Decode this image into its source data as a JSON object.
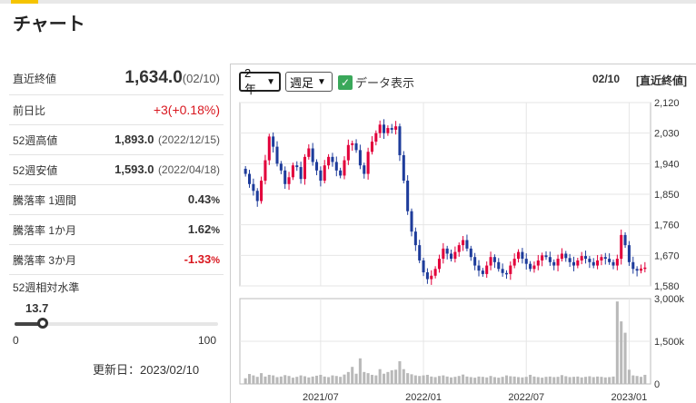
{
  "page": {
    "title": "チャート"
  },
  "stats": {
    "close": {
      "label": "直近終値",
      "value": "1,634.0",
      "date": "(02/10)"
    },
    "change": {
      "label": "前日比",
      "value": "+3(+0.18%)"
    },
    "high52": {
      "label": "52週高値",
      "value": "1,893.0",
      "date": "(2022/12/15)"
    },
    "low52": {
      "label": "52週安値",
      "value": "1,593.0",
      "date": "(2022/04/18)"
    },
    "drop1w": {
      "label": "騰落率 1週間",
      "value": "0.43",
      "unit": "%"
    },
    "drop1m": {
      "label": "騰落率 1か月",
      "value": "1.62",
      "unit": "%"
    },
    "drop3m": {
      "label": "騰落率 3か月",
      "value": "-1.33",
      "unit": "%"
    },
    "relative": {
      "label": "52週相対水準",
      "value": "13.7",
      "level": 13.7,
      "min": "0",
      "max": "100"
    },
    "updated": "更新日：2023/02/10"
  },
  "controls": {
    "period": "2年",
    "interval": "週足",
    "show_data": "データ表示",
    "date": "02/10",
    "price_type": "[直近終値]"
  },
  "chart_data": [
    {
      "type": "candlestick",
      "price_ticks": [
        "2,120",
        "2,030",
        "1,940",
        "1,850",
        "1,760",
        "1,670",
        "1,580"
      ],
      "ylim": [
        1580,
        2120
      ],
      "x_ticks": [
        "2021/07",
        "2022/01",
        "2022/07",
        "2023/01"
      ],
      "colors": {
        "up": "#e2003b",
        "down": "#1e3c9b"
      },
      "close": [
        1910,
        1880,
        1860,
        1830,
        1890,
        1950,
        2020,
        1990,
        1940,
        1920,
        1880,
        1900,
        1935,
        1930,
        1895,
        1960,
        1985,
        1945,
        1920,
        1890,
        1935,
        1960,
        1945,
        1920,
        1905,
        1950,
        1995,
        2000,
        1980,
        1935,
        1910,
        1975,
        2005,
        2030,
        2055,
        2030,
        2045,
        2040,
        2050,
        1965,
        1890,
        1800,
        1740,
        1700,
        1655,
        1620,
        1600,
        1610,
        1630,
        1660,
        1690,
        1675,
        1660,
        1680,
        1700,
        1715,
        1690,
        1665,
        1640,
        1625,
        1615,
        1640,
        1665,
        1650,
        1630,
        1618,
        1615,
        1640,
        1660,
        1680,
        1660,
        1645,
        1630,
        1640,
        1655,
        1670,
        1665,
        1650,
        1640,
        1660,
        1675,
        1662,
        1650,
        1640,
        1655,
        1668,
        1660,
        1650,
        1640,
        1655,
        1665,
        1660,
        1650,
        1640,
        1660,
        1730,
        1700,
        1650,
        1630,
        1625,
        1631,
        1634
      ],
      "volume_ticks": [
        "3,000k",
        "1,500k",
        "0"
      ],
      "volume_max": 3000,
      "volume": [
        200,
        350,
        300,
        250,
        380,
        260,
        320,
        300,
        240,
        260,
        310,
        280,
        220,
        250,
        300,
        270,
        230,
        260,
        290,
        320,
        260,
        240,
        300,
        280,
        250,
        330,
        420,
        600,
        360,
        900,
        420,
        380,
        320,
        300,
        520,
        360,
        420,
        480,
        500,
        800,
        520,
        380,
        340,
        300,
        280,
        300,
        320,
        260,
        240,
        280,
        300,
        260,
        230,
        250,
        280,
        330,
        260,
        240,
        220,
        260,
        250,
        230,
        280,
        240,
        220,
        250,
        300,
        270,
        260,
        240,
        230,
        250,
        320,
        260,
        240,
        220,
        250,
        260,
        240,
        250,
        310,
        270,
        240,
        250,
        260,
        230,
        250,
        270,
        240,
        260,
        250,
        230,
        240,
        260,
        2900,
        2200,
        1800,
        500,
        300,
        280,
        250,
        320
      ]
    }
  ]
}
